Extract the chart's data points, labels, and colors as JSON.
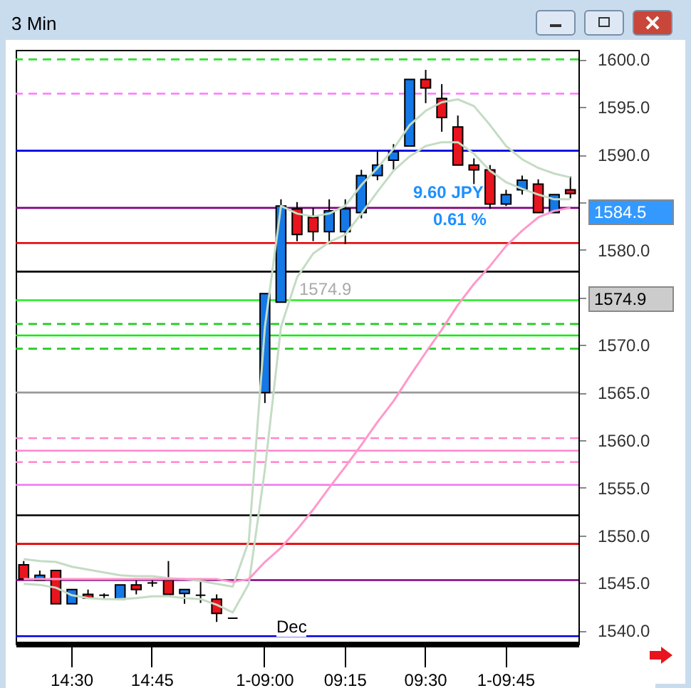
{
  "chart_data": {
    "type": "candlestick",
    "title": "3 Min",
    "categories": [
      null,
      null,
      null,
      "14:30",
      null,
      null,
      null,
      null,
      "14:45",
      null,
      null,
      null,
      null,
      null,
      null,
      "1-09:00",
      null,
      null,
      null,
      null,
      "09:15",
      null,
      null,
      null,
      null,
      "09:30",
      null,
      null,
      null,
      null,
      "1-09:45",
      null,
      null,
      null,
      null
    ],
    "ohlc": [
      [
        1546.9,
        1547.3,
        1545.4,
        1545.4
      ],
      [
        1545.3,
        1546.3,
        1545.3,
        1545.8
      ],
      [
        1546.3,
        1546.3,
        1542.8,
        1542.8
      ],
      [
        1542.8,
        1544.3,
        1542.8,
        1544.3
      ],
      [
        1543.8,
        1544.3,
        1543.4,
        1543.4
      ],
      [
        1543.7,
        1543.9,
        1543.4,
        1543.7
      ],
      [
        1543.3,
        1544.8,
        1543.3,
        1544.8
      ],
      [
        1544.8,
        1545.3,
        1543.8,
        1544.3
      ],
      [
        1545.0,
        1545.4,
        1544.6,
        1545.0
      ],
      [
        1545.3,
        1547.3,
        1543.8,
        1543.8
      ],
      [
        1543.9,
        1544.3,
        1542.8,
        1544.3
      ],
      [
        1543.7,
        1545.3,
        1542.9,
        1543.7
      ],
      [
        1543.3,
        1543.8,
        1540.9,
        1541.8
      ],
      [
        1541.3,
        1541.3,
        1541.3,
        1541.3
      ],
      null,
      [
        1565.0,
        1575.4,
        1563.9,
        1575.4
      ],
      [
        1574.5,
        1585.3,
        1574.5,
        1584.6
      ],
      [
        1584.3,
        1585.0,
        1580.9,
        1581.6
      ],
      [
        1583.4,
        1584.4,
        1580.9,
        1581.9
      ],
      [
        1581.9,
        1585.3,
        1580.6,
        1584.1
      ],
      [
        1581.9,
        1585.3,
        1580.6,
        1584.3
      ],
      [
        1583.9,
        1588.4,
        1583.3,
        1587.8
      ],
      [
        1587.8,
        1590.3,
        1587.3,
        1588.9
      ],
      [
        1589.4,
        1591.1,
        1588.4,
        1590.3
      ],
      [
        1590.9,
        1597.9,
        1590.9,
        1597.9
      ],
      [
        1597.9,
        1598.9,
        1595.4,
        1597.0
      ],
      [
        1595.9,
        1597.4,
        1592.4,
        1593.9
      ],
      [
        1592.9,
        1594.1,
        1588.9,
        1588.9
      ],
      [
        1588.9,
        1589.6,
        1586.9,
        1588.4
      ],
      [
        1588.4,
        1588.9,
        1584.3,
        1584.8
      ],
      [
        1584.8,
        1586.3,
        1584.6,
        1585.8
      ],
      [
        1586.3,
        1587.8,
        1585.8,
        1587.3
      ],
      [
        1586.9,
        1587.4,
        1583.9,
        1583.9
      ],
      [
        1583.9,
        1585.8,
        1583.9,
        1585.8
      ],
      [
        1586.3,
        1587.7,
        1585.4,
        1585.9
      ]
    ],
    "colors": [
      "#e8141e",
      "#1478e6",
      "#e8141e",
      "#1478e6",
      "#e8141e",
      "#000000",
      "#1478e6",
      "#e8141e",
      "#000000",
      "#e8141e",
      "#1478e6",
      "#000000",
      "#e8141e",
      "#000000",
      null,
      "#1478e6",
      "#1478e6",
      "#e8141e",
      "#e8141e",
      "#1478e6",
      "#1478e6",
      "#1478e6",
      "#1478e6",
      "#1478e6",
      "#1478e6",
      "#e8141e",
      "#e8141e",
      "#e8141e",
      "#e8141e",
      "#e8141e",
      "#1478e6",
      "#1478e6",
      "#e8141e",
      "#1478e6",
      "#e8141e"
    ],
    "series": [
      {
        "type": "line",
        "color": "#c4dcc4",
        "values": [
          1547.5,
          1547.3,
          1547.2,
          1546.7,
          1546.4,
          1546.1,
          1545.8,
          1545.7,
          1545.7,
          1545.5,
          1545.4,
          1545.2,
          1544.9,
          1544.6,
          1549.4,
          1571.9,
          1584.6,
          1583.8,
          1583.5,
          1583.8,
          1584.6,
          1586.8,
          1588.6,
          1590.6,
          1593.1,
          1594.6,
          1595.5,
          1595.8,
          1595.1,
          1593.1,
          1590.9,
          1589.5,
          1588.6,
          1588.0,
          1587.6
        ]
      },
      {
        "type": "line",
        "color": "#c4dcc4",
        "values": [
          1544.9,
          1544.8,
          1544.5,
          1543.7,
          1543.4,
          1543.3,
          1543.3,
          1543.4,
          1543.6,
          1543.6,
          1543.4,
          1543.3,
          1542.7,
          1541.9,
          1544.9,
          1556.9,
          1571.9,
          1577.1,
          1579.6,
          1580.8,
          1581.6,
          1583.8,
          1586.1,
          1588.3,
          1589.8,
          1590.9,
          1591.3,
          1591.3,
          1590.1,
          1588.3,
          1587.1,
          1586.4,
          1585.8,
          1585.3,
          1585.3
        ]
      },
      {
        "type": "line",
        "color": "#ff99cc",
        "values": [
          1545.4,
          1545.4,
          1545.4,
          1545.4,
          1545.4,
          1545.4,
          1545.4,
          1545.4,
          1545.4,
          1545.4,
          1545.4,
          1545.4,
          1545.4,
          1545.1,
          1545.4,
          1547.2,
          1548.7,
          1550.6,
          1552.7,
          1555.0,
          1557.2,
          1559.5,
          1561.9,
          1564.1,
          1566.7,
          1569.2,
          1571.6,
          1574.2,
          1576.4,
          1578.3,
          1580.4,
          1582.0,
          1583.4,
          1584.1,
          1584.4
        ]
      }
    ],
    "ylim": [
      1538.6,
      1601.0
    ],
    "yticks": [
      {
        "value": 1540,
        "label": "1540.0"
      },
      {
        "value": 1545,
        "label": "1545.0"
      },
      {
        "value": 1550,
        "label": "1550.0"
      },
      {
        "value": 1555,
        "label": "1555.0"
      },
      {
        "value": 1560,
        "label": "1560.0"
      },
      {
        "value": 1565,
        "label": "1565.0"
      },
      {
        "value": 1570,
        "label": "1570.0"
      },
      {
        "value": 1575,
        "label": null
      },
      {
        "value": 1580,
        "label": "1580.0"
      },
      {
        "value": 1585,
        "label": null
      },
      {
        "value": 1590,
        "label": "1590.0"
      },
      {
        "value": 1595,
        "label": "1595.0"
      },
      {
        "value": 1600,
        "label": "1600.0"
      }
    ],
    "ref_lines": [
      {
        "axis": "y",
        "value": 1600.0,
        "color": "#33dd33",
        "line_style": "dashed"
      },
      {
        "axis": "y",
        "value": 1596.4,
        "color": "#ff77ff",
        "line_style": "dashed"
      },
      {
        "axis": "y",
        "value": 1590.4,
        "color": "#0000dd",
        "line_style": "solid"
      },
      {
        "axis": "y",
        "value": 1584.4,
        "color": "#800080",
        "line_style": "solid"
      },
      {
        "axis": "y",
        "value": 1580.7,
        "color": "#e00000",
        "line_style": "solid"
      },
      {
        "axis": "y",
        "value": 1577.7,
        "color": "#000000",
        "line_style": "solid"
      },
      {
        "axis": "y",
        "value": 1574.7,
        "color": "#22ee22",
        "line_style": "solid"
      },
      {
        "axis": "y",
        "value": 1572.2,
        "color": "#22cc22",
        "line_style": "dashed"
      },
      {
        "axis": "y",
        "value": 1571.0,
        "color": "#00ee00",
        "line_style": "solid"
      },
      {
        "axis": "y",
        "value": 1569.6,
        "color": "#22cc22",
        "line_style": "dashed"
      },
      {
        "axis": "y",
        "value": 1565.0,
        "color": "#999999",
        "line_style": "solid"
      },
      {
        "axis": "y",
        "value": 1560.2,
        "color": "#ff88cc",
        "line_style": "dashed"
      },
      {
        "axis": "y",
        "value": 1558.9,
        "color": "#ff88cc",
        "line_style": "solid"
      },
      {
        "axis": "y",
        "value": 1557.7,
        "color": "#ff88cc",
        "line_style": "dashed"
      },
      {
        "axis": "y",
        "value": 1555.3,
        "color": "#ee77ee",
        "line_style": "solid"
      },
      {
        "axis": "y",
        "value": 1552.1,
        "color": "#000000",
        "line_style": "solid"
      },
      {
        "axis": "y",
        "value": 1549.1,
        "color": "#e00000",
        "line_style": "solid"
      },
      {
        "axis": "y",
        "value": 1545.3,
        "color": "#800080",
        "line_style": "solid"
      },
      {
        "axis": "y",
        "value": 1539.4,
        "color": "#0000dd",
        "line_style": "solid"
      }
    ],
    "annotations": [
      "9.60 JPY",
      "0.61 %",
      "1574.9",
      "Dec",
      "1584.5",
      "1574.9"
    ]
  }
}
